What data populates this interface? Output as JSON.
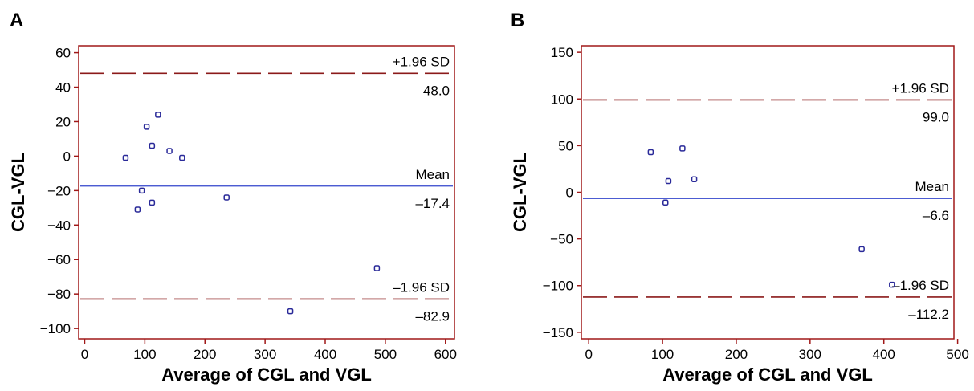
{
  "colors": {
    "frame": "#a01818",
    "limit_line": "#8b1a1a",
    "mean_line": "#3344cc",
    "points": "#2a2a99",
    "text": "#000000"
  },
  "chart_data": [
    {
      "type": "scatter",
      "panel_label": "A",
      "xlabel": "Average of CGL and VGL",
      "ylabel": "CGL-VGL",
      "xlim": [
        -10,
        615
      ],
      "ylim": [
        -106,
        64
      ],
      "x_ticks": [
        0,
        100,
        200,
        300,
        400,
        500,
        600
      ],
      "y_ticks": [
        60,
        40,
        20,
        0,
        -20,
        -40,
        -60,
        -80,
        -100
      ],
      "y_tick_labels": [
        "60",
        "40",
        "20",
        "0",
        "−20",
        "−40",
        "−60",
        "−80",
        "−100"
      ],
      "reference_lines": [
        {
          "name": "+1.96 SD",
          "value": 48.0,
          "value_label": "48.0",
          "style": "dashed"
        },
        {
          "name": "Mean",
          "value": -17.4,
          "value_label": "–17.4",
          "style": "solid"
        },
        {
          "name": "–1.96 SD",
          "value": -82.9,
          "value_label": "–82.9",
          "style": "dashed"
        }
      ],
      "points": [
        {
          "x": 68,
          "y": -1
        },
        {
          "x": 103,
          "y": 17
        },
        {
          "x": 122,
          "y": 24
        },
        {
          "x": 112,
          "y": 6
        },
        {
          "x": 141,
          "y": 3
        },
        {
          "x": 162,
          "y": -1
        },
        {
          "x": 95,
          "y": -20
        },
        {
          "x": 88,
          "y": -31
        },
        {
          "x": 112,
          "y": -27
        },
        {
          "x": 236,
          "y": -24
        },
        {
          "x": 486,
          "y": -65
        },
        {
          "x": 342,
          "y": -90
        }
      ]
    },
    {
      "type": "scatter",
      "panel_label": "B",
      "xlabel": "Average of CGL and VGL",
      "ylabel": "CGL-VGL",
      "xlim": [
        -10,
        495
      ],
      "ylim": [
        -157,
        157
      ],
      "x_ticks": [
        0,
        100,
        200,
        300,
        400,
        500
      ],
      "y_ticks": [
        150,
        100,
        50,
        0,
        -50,
        -100,
        -150
      ],
      "y_tick_labels": [
        "150",
        "100",
        "50",
        "0",
        "−50",
        "−100",
        "−150"
      ],
      "reference_lines": [
        {
          "name": "+1.96 SD",
          "value": 99.0,
          "value_label": "99.0",
          "style": "dashed"
        },
        {
          "name": "Mean",
          "value": -6.6,
          "value_label": "–6.6",
          "style": "solid"
        },
        {
          "name": "–1.96 SD",
          "value": -112.2,
          "value_label": "–112.2",
          "style": "dashed"
        }
      ],
      "points": [
        {
          "x": 84,
          "y": 43
        },
        {
          "x": 127,
          "y": 47
        },
        {
          "x": 108,
          "y": 12
        },
        {
          "x": 143,
          "y": 14
        },
        {
          "x": 104,
          "y": -11
        },
        {
          "x": 370,
          "y": -61
        },
        {
          "x": 411,
          "y": -99
        }
      ]
    }
  ]
}
